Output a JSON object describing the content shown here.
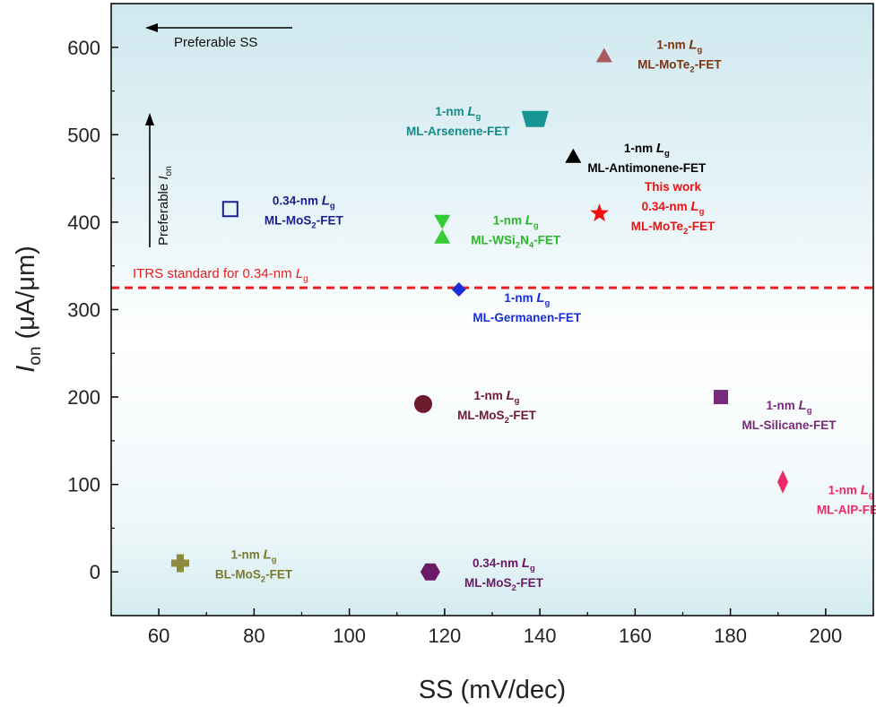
{
  "chart_data": {
    "type": "scatter",
    "xlabel": "SS (mV/dec)",
    "ylabel_main": "I",
    "ylabel_sub": "on",
    "ylabel_rest": " (μA/μm)",
    "xlim": [
      50,
      210
    ],
    "ylim": [
      -50,
      650
    ],
    "xticks": [
      60,
      80,
      100,
      120,
      140,
      160,
      180,
      200
    ],
    "yticks": [
      0,
      100,
      200,
      300,
      400,
      500,
      600
    ],
    "grid": false,
    "reference_line": {
      "y": 325,
      "color": "#ee1c1c",
      "label_main": "ITRS standard for 0.34-nm ",
      "label_italic": "L",
      "label_sub": "g"
    },
    "annotations": {
      "preferable_ss": "Preferable SS",
      "preferable_ion_main": "Preferable ",
      "preferable_ion_italic": "I",
      "preferable_ion_sub": "on"
    },
    "points": [
      {
        "id": "mote2-1nm",
        "x": 153.5,
        "y": 590,
        "marker": "triangle",
        "color": "#a85a60",
        "filled": true,
        "line1": "1-nm",
        "line2_prefix": "ML-MoTe",
        "line2_sub": "2",
        "line2_suffix": "-FET",
        "label_color": "#7a3410",
        "label_anchor": "right-up"
      },
      {
        "id": "arsenene",
        "x": 139,
        "y": 518,
        "marker": "trapezoid",
        "color": "#159494",
        "filled": true,
        "line1": "1-nm",
        "line2_prefix": "ML-Arsenene-FET",
        "line2_sub": "",
        "line2_suffix": "",
        "label_color": "#138a8a",
        "label_anchor": "left"
      },
      {
        "id": "antimonene",
        "x": 147,
        "y": 475,
        "marker": "triangle",
        "color": "#000000",
        "filled": true,
        "line1": "1-nm",
        "line2_prefix": "ML-Antimonene-FET",
        "line2_sub": "",
        "line2_suffix": "",
        "label_color": "#000000",
        "label_anchor": "right"
      },
      {
        "id": "mos2-034-open",
        "x": 75,
        "y": 415,
        "marker": "square-open",
        "color": "#1a1f8c",
        "filled": false,
        "line1": "0.34-nm",
        "line2_prefix": "ML-MoS",
        "line2_sub": "2",
        "line2_suffix": "-FET",
        "label_color": "#1a1f8c",
        "label_anchor": "right"
      },
      {
        "id": "wsi2n4",
        "x": 119.5,
        "y": 392,
        "marker": "hourglass",
        "color": "#33cc33",
        "filled": true,
        "line1": "1-nm",
        "line2_prefix": "ML-WSi",
        "line2_sub": "2",
        "line2_suffix": "N",
        "line2_sub2": "4",
        "line2_suffix2": "-FET",
        "label_color": "#2ab82a",
        "label_anchor": "right"
      },
      {
        "id": "this-work",
        "x": 152.5,
        "y": 410,
        "marker": "star",
        "color": "#ee1111",
        "filled": true,
        "line0": "This work",
        "line1": "0.34-nm",
        "line2_prefix": "ML-MoTe",
        "line2_sub": "2",
        "line2_suffix": "-FET",
        "label_color": "#ee1111",
        "label_anchor": "right"
      },
      {
        "id": "germanene",
        "x": 123,
        "y": 323,
        "marker": "diamond",
        "color": "#1a2ed8",
        "filled": true,
        "line1": "1-nm",
        "line2_prefix": "ML-Germanen-FET",
        "line2_sub": "",
        "line2_suffix": "",
        "label_color": "#1a2ed8",
        "label_anchor": "right-down"
      },
      {
        "id": "mos2-1nm",
        "x": 115.5,
        "y": 192,
        "marker": "circle",
        "color": "#6e1a2e",
        "filled": true,
        "line1": "1-nm",
        "line2_prefix": "ML-MoS",
        "line2_sub": "2",
        "line2_suffix": "-FET",
        "label_color": "#6e1a2e",
        "label_anchor": "right"
      },
      {
        "id": "silicane",
        "x": 178,
        "y": 200,
        "marker": "square",
        "color": "#7a2a7a",
        "filled": true,
        "line1": "1-nm",
        "line2_prefix": "ML-Silicane-FET",
        "line2_sub": "",
        "line2_suffix": "",
        "label_color": "#7a2a7a",
        "label_anchor": "right-down"
      },
      {
        "id": "alp",
        "x": 191,
        "y": 103,
        "marker": "thin-diamond",
        "color": "#ee2a66",
        "filled": true,
        "line1": "1-nm",
        "line2_prefix": "ML-AlP-FET",
        "line2_sub": "",
        "line2_suffix": "",
        "label_color": "#ee2a66",
        "label_anchor": "right-down"
      },
      {
        "id": "bl-mos2",
        "x": 64.5,
        "y": 10,
        "marker": "cross",
        "color": "#8c8a3c",
        "filled": true,
        "line1": "1-nm",
        "line2_prefix": "BL-MoS",
        "line2_sub": "2",
        "line2_suffix": "-FET",
        "label_color": "#7a7a2e",
        "label_anchor": "right"
      },
      {
        "id": "mos2-034-hex",
        "x": 117,
        "y": 0,
        "marker": "hexagon",
        "color": "#6a1a66",
        "filled": true,
        "line1": "0.34-nm",
        "line2_prefix": "ML-MoS",
        "line2_sub": "2",
        "line2_suffix": "-FET",
        "label_color": "#6a1a66",
        "label_anchor": "right"
      }
    ],
    "lg_italic": "L",
    "lg_sub": "g"
  }
}
